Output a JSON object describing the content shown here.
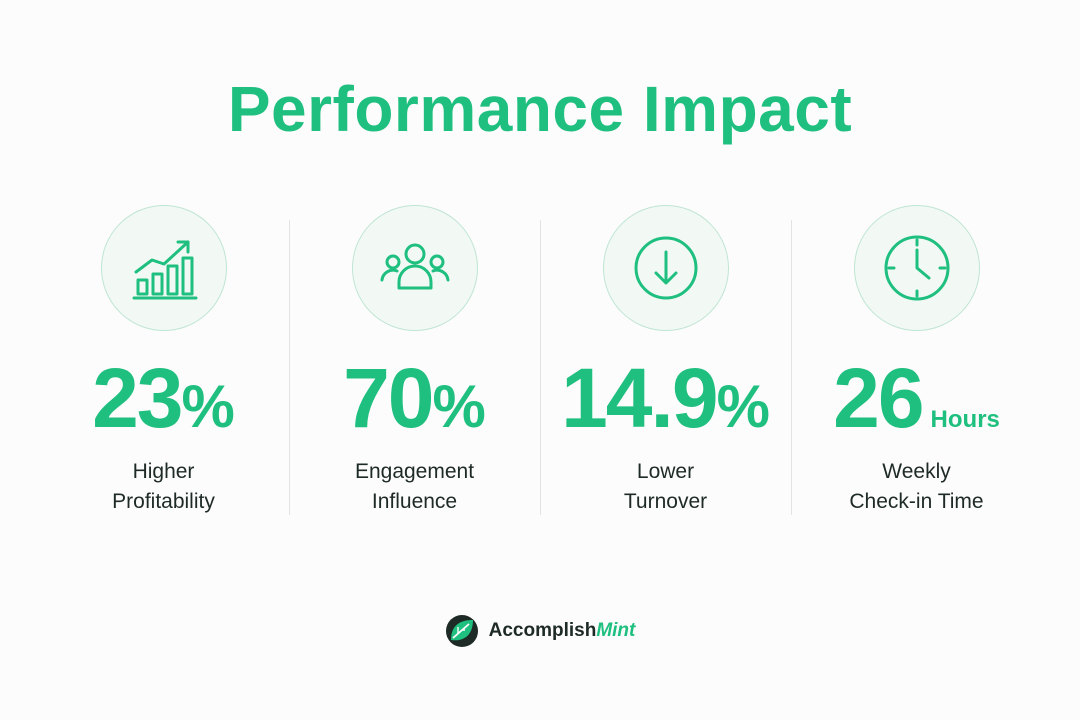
{
  "title": "Performance Impact",
  "accent_color": "#1fbf7f",
  "stats": [
    {
      "icon": "growth-chart-icon",
      "number": "23",
      "suffix": "%",
      "unit": "",
      "label_line1": "Higher",
      "label_line2": "Profitability"
    },
    {
      "icon": "people-group-icon",
      "number": "70",
      "suffix": "%",
      "unit": "",
      "label_line1": "Engagement",
      "label_line2": "Influence"
    },
    {
      "icon": "down-arrow-circle-icon",
      "number": "14.9",
      "suffix": "%",
      "unit": "",
      "label_line1": "Lower",
      "label_line2": "Turnover"
    },
    {
      "icon": "clock-icon",
      "number": "26",
      "suffix": "",
      "unit": "Hours",
      "label_line1": "Weekly",
      "label_line2": "Check-in Time"
    }
  ],
  "brand": {
    "name_part1": "Accomplish",
    "name_part2": "Mint",
    "logo_icon": "leaf-logo-icon"
  }
}
